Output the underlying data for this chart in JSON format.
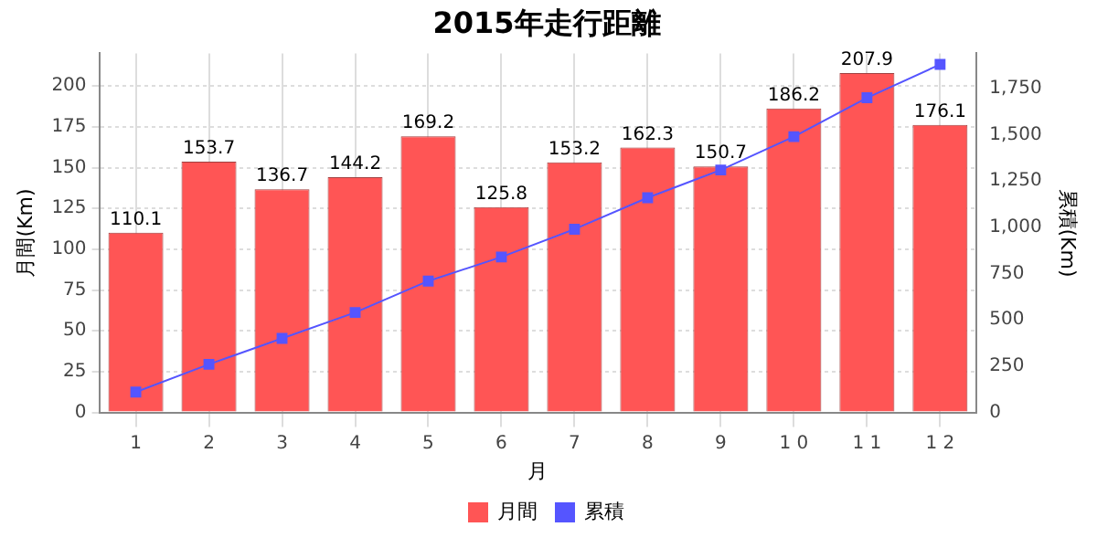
{
  "chart_data": {
    "type": "bar",
    "title": "2015年走行距離",
    "xlabel": "月",
    "ylabel": "月間(Km)",
    "y2label": "累積(Km)",
    "categories": [
      "1",
      "2",
      "3",
      "4",
      "5",
      "6",
      "7",
      "8",
      "9",
      "1 0",
      "1 1",
      "1 2"
    ],
    "series": [
      {
        "name": "月間",
        "color": "#ff5555",
        "values": [
          110.1,
          153.7,
          136.7,
          144.2,
          169.2,
          125.8,
          153.2,
          162.3,
          150.7,
          186.2,
          207.9,
          176.1
        ],
        "value_labels": [
          "110.1",
          "153.7",
          "136.7",
          "144.2",
          "169.2",
          "125.8",
          "153.2",
          "162.3",
          "150.7",
          "186.2",
          "207.9",
          "176.1"
        ]
      },
      {
        "name": "累積",
        "type": "line",
        "axis": "y2",
        "color": "#5555ff",
        "values": [
          110,
          260,
          400,
          540,
          710,
          840,
          990,
          1160,
          1310,
          1490,
          1700,
          1880
        ]
      }
    ],
    "ylim": [
      0,
      220
    ],
    "yticks": [
      0,
      25,
      50,
      75,
      100,
      125,
      150,
      175,
      200
    ],
    "y2lim": [
      0,
      1940
    ],
    "y2ticks": [
      0,
      250,
      500,
      750,
      {
        "value": 1000,
        "label": "1,000"
      },
      {
        "value": 1250,
        "label": "1,250"
      },
      {
        "value": 1500,
        "label": "1,500"
      },
      {
        "value": 1750,
        "label": "1,750"
      }
    ],
    "grid": true,
    "legend": "bottom",
    "marker": "square",
    "line_style": "solid"
  }
}
